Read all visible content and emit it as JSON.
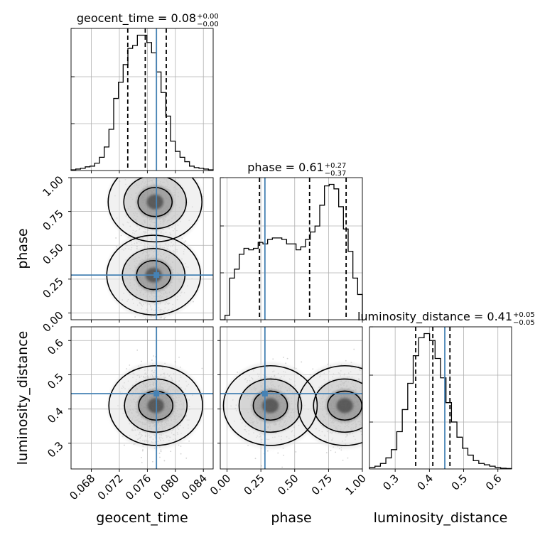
{
  "chart_data": {
    "type": "corner",
    "parameters": [
      "geocent_time",
      "phase",
      "luminosity_distance"
    ],
    "ranges": {
      "geocent_time": [
        0.0651,
        0.0854
      ],
      "phase": [
        -0.05,
        1.0
      ],
      "luminosity_distance": [
        0.225,
        0.64
      ]
    },
    "truth": {
      "geocent_time": 0.0773,
      "phase": 0.28,
      "luminosity_distance": 0.445
    },
    "colors": {
      "truth": "#4682b4",
      "hist": "#000000",
      "grid": "#b0b0b0"
    },
    "titles": [
      {
        "param": "geocent_time",
        "main": "geocent_time = 0.08",
        "sup": "+0.00",
        "sub": "−0.00"
      },
      {
        "param": "phase",
        "main": "phase = 0.61",
        "sup": "+0.27",
        "sub": "−0.37"
      },
      {
        "param": "luminosity_distance",
        "main": "luminosity_distance = 0.41",
        "sup": "+0.05",
        "sub": "−0.05"
      }
    ],
    "axis_labels": {
      "geocent_time": "geocent_time",
      "phase": "phase",
      "luminosity_distance": "luminosity_distance"
    },
    "ticks": {
      "geocent_time": {
        "values": [
          0.068,
          0.072,
          0.076,
          0.08,
          0.084
        ],
        "labels": [
          "0.068",
          "0.072",
          "0.076",
          "0.080",
          "0.084"
        ]
      },
      "phase": {
        "values": [
          0.0,
          0.25,
          0.5,
          0.75,
          1.0
        ],
        "labels": [
          "0.00",
          "0.25",
          "0.50",
          "0.75",
          "1.00"
        ]
      },
      "luminosity_distance": {
        "values": [
          0.3,
          0.4,
          0.5,
          0.6
        ],
        "labels": [
          "0.3",
          "0.4",
          "0.5",
          "0.6"
        ]
      }
    },
    "quantiles": {
      "geocent_time": [
        0.0732,
        0.0757,
        0.0787
      ],
      "phase": [
        0.24,
        0.61,
        0.88
      ],
      "luminosity_distance": [
        0.36,
        0.41,
        0.46
      ]
    },
    "histograms": {
      "geocent_time": {
        "edges": [
          0.0651,
          0.0854
        ],
        "counts": [
          0.5,
          1,
          1.5,
          2.5,
          3,
          5,
          9,
          16,
          28,
          49,
          60,
          72,
          83,
          85,
          92,
          92,
          87,
          80,
          67,
          53,
          37,
          20,
          13,
          9,
          6,
          3,
          2,
          1.5,
          1,
          0.5
        ]
      },
      "phase": {
        "edges": [
          -0.05,
          1.0
        ],
        "counts": [
          0,
          3,
          28,
          34,
          44,
          48,
          47,
          48,
          52,
          51,
          54,
          55,
          55,
          54,
          51,
          51,
          47,
          49,
          54,
          59,
          63,
          77,
          90,
          91,
          88,
          76,
          61,
          46,
          28,
          17
        ]
      },
      "luminosity_distance": {
        "edges": [
          0.225,
          0.64
        ],
        "counts": [
          1,
          2,
          4,
          8,
          14,
          27,
          43,
          62,
          82,
          95,
          98,
          93,
          80,
          66,
          48,
          34,
          23,
          15,
          10,
          6,
          4,
          3,
          2,
          1,
          0.5,
          0.3
        ]
      }
    },
    "density_2d": [
      {
        "x": "geocent_time",
        "y": "phase",
        "modes": [
          {
            "x": 0.0771,
            "y": 0.82
          },
          {
            "x": 0.0769,
            "y": 0.28
          }
        ]
      },
      {
        "x": "geocent_time",
        "y": "luminosity_distance",
        "modes": [
          {
            "x": 0.0772,
            "y": 0.41
          }
        ]
      },
      {
        "x": "phase",
        "y": "luminosity_distance",
        "modes": [
          {
            "x": 0.87,
            "y": 0.41
          },
          {
            "x": 0.32,
            "y": 0.41
          }
        ]
      }
    ]
  }
}
